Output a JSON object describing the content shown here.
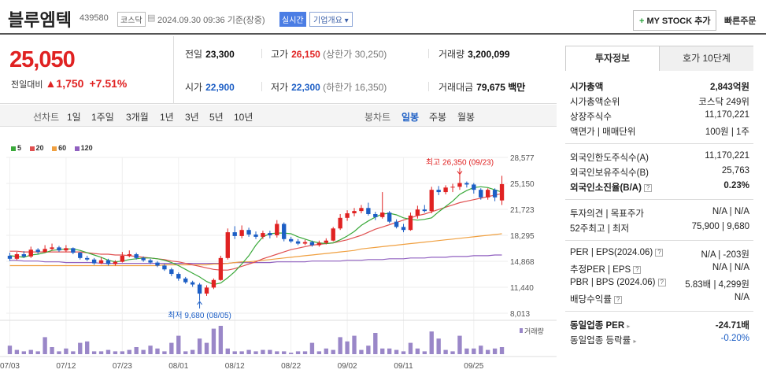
{
  "header": {
    "name": "블루엠텍",
    "code": "439580",
    "market": "코스닥",
    "datetime": "2024.09.30 09:36 기준(장중)",
    "realtime": "실시간",
    "overview": "기업개요 ▾",
    "mystock_plus": "+",
    "mystock": "MY STOCK 추가",
    "quick_order": "빠른주문"
  },
  "price": {
    "current": "25,050",
    "change_label": "전일대비",
    "change_amount": "▲1,750",
    "change_pct": "+7.51%",
    "prev_label": "전일",
    "prev": "23,300",
    "high_label": "고가",
    "high": "26,150",
    "upper_limit": "(상한가 30,250)",
    "volume_label": "거래량",
    "volume": "3,200,099",
    "open_label": "시가",
    "open": "22,900",
    "low_label": "저가",
    "low": "22,300",
    "lower_limit": "(하한가 16,350)",
    "amount_label": "거래대금",
    "amount": "79,675 백만"
  },
  "chart_controls": {
    "line_label": "선차트",
    "line_periods": [
      "1일",
      "1주일",
      "3개월",
      "1년",
      "3년",
      "5년",
      "10년"
    ],
    "candle_label": "봉차트",
    "candle_periods": [
      "일봉",
      "주봉",
      "월봉"
    ],
    "selected": "일봉"
  },
  "chart_data": {
    "type": "candlestick",
    "legend": [
      {
        "name": "5",
        "color": "#3aa93a"
      },
      {
        "name": "20",
        "color": "#e05050"
      },
      {
        "name": "60",
        "color": "#f0a040"
      },
      {
        "name": "120",
        "color": "#9060c0"
      }
    ],
    "y_ticks": [
      "28,577",
      "25,150",
      "21,723",
      "18,295",
      "14,868",
      "11,440",
      "8,013"
    ],
    "ylim": [
      8013,
      28577
    ],
    "x_ticks": [
      "07/03",
      "07/12",
      "07/23",
      "08/01",
      "08/12",
      "08/22",
      "09/02",
      "09/11",
      "09/25"
    ],
    "volume_label": "거래량",
    "high_annotation": "최고 26,350 (09/23)",
    "low_annotation": "최저 9,680 (08/05)",
    "candles": [
      [
        15600,
        15200,
        16000,
        14900
      ],
      [
        15200,
        15800,
        16100,
        15000
      ],
      [
        15800,
        15500,
        16200,
        15300
      ],
      [
        15500,
        16400,
        16800,
        15300
      ],
      [
        16400,
        16100,
        16600,
        15800
      ],
      [
        16100,
        16500,
        17000,
        16000
      ],
      [
        16500,
        16700,
        17200,
        16300
      ],
      [
        16700,
        16300,
        16900,
        16100
      ],
      [
        16300,
        16600,
        17000,
        16100
      ],
      [
        16600,
        16000,
        16700,
        15800
      ],
      [
        16000,
        15300,
        16100,
        15100
      ],
      [
        15300,
        15100,
        15600,
        14900
      ],
      [
        15100,
        14600,
        15300,
        14400
      ],
      [
        14600,
        15000,
        15400,
        14500
      ],
      [
        15000,
        14500,
        15200,
        14300
      ],
      [
        14500,
        14800,
        15000,
        14300
      ],
      [
        14800,
        15600,
        16100,
        14700
      ],
      [
        15600,
        15800,
        16300,
        15400
      ],
      [
        15800,
        15300,
        16000,
        15100
      ],
      [
        15300,
        15000,
        15500,
        14800
      ],
      [
        15000,
        14700,
        15200,
        14500
      ],
      [
        14700,
        14300,
        14900,
        14100
      ],
      [
        14300,
        13800,
        14500,
        13600
      ],
      [
        13800,
        13200,
        14000,
        12900
      ],
      [
        13200,
        12600,
        13400,
        12300
      ],
      [
        12600,
        12100,
        12800,
        11900
      ],
      [
        12100,
        11800,
        12300,
        11500
      ],
      [
        11800,
        10600,
        12000,
        9680
      ],
      [
        10600,
        11400,
        11700,
        10300
      ],
      [
        11400,
        12400,
        12600,
        11200
      ],
      [
        12400,
        15300,
        15600,
        12300
      ],
      [
        15300,
        18700,
        19200,
        15100
      ],
      [
        18700,
        18200,
        19500,
        17800
      ],
      [
        18200,
        19000,
        19600,
        17900
      ],
      [
        19000,
        18400,
        19300,
        18100
      ],
      [
        18400,
        18100,
        18800,
        17800
      ],
      [
        18100,
        18600,
        18900,
        17800
      ],
      [
        18600,
        18300,
        18900,
        17900
      ],
      [
        18300,
        19800,
        20300,
        18000
      ],
      [
        19800,
        17800,
        20000,
        17500
      ],
      [
        17800,
        17500,
        18100,
        17300
      ],
      [
        17500,
        17200,
        17800,
        17000
      ],
      [
        17200,
        17400,
        17700,
        17000
      ],
      [
        17400,
        17000,
        17600,
        16800
      ],
      [
        17000,
        17300,
        17600,
        16800
      ],
      [
        17300,
        17600,
        17900,
        17100
      ],
      [
        17600,
        19200,
        19400,
        17500
      ],
      [
        19200,
        20600,
        21100,
        19000
      ],
      [
        20600,
        21200,
        21600,
        20200
      ],
      [
        21200,
        21500,
        21900,
        20800
      ],
      [
        21500,
        21900,
        22300,
        21200
      ],
      [
        21900,
        21100,
        22600,
        20900
      ],
      [
        21100,
        20700,
        21400,
        20300
      ],
      [
        20700,
        21300,
        24000,
        20500
      ],
      [
        21300,
        20100,
        21500,
        19900
      ],
      [
        20100,
        19400,
        20400,
        19200
      ],
      [
        19400,
        19000,
        19800,
        18700
      ],
      [
        19000,
        20900,
        21300,
        18900
      ],
      [
        20900,
        21700,
        22200,
        20500
      ],
      [
        21700,
        21500,
        22300,
        21300
      ],
      [
        21500,
        24300,
        24700,
        21200
      ],
      [
        24300,
        24000,
        24800,
        23600
      ],
      [
        24000,
        24600,
        24900,
        23700
      ],
      [
        24600,
        24700,
        25100,
        24000
      ],
      [
        24700,
        25200,
        26350,
        24300
      ],
      [
        25200,
        25000,
        25400,
        24600
      ],
      [
        25000,
        24300,
        25200,
        23800
      ],
      [
        24300,
        23300,
        24500,
        23000
      ],
      [
        23300,
        24300,
        24500,
        23000
      ],
      [
        24300,
        23300,
        24500,
        22800
      ],
      [
        22900,
        25050,
        26150,
        22300
      ]
    ],
    "volumes": [
      6,
      3,
      2,
      3,
      2,
      12,
      5,
      2,
      4,
      2,
      8,
      9,
      2,
      2,
      3,
      2,
      2,
      3,
      5,
      3,
      6,
      4,
      2,
      8,
      13,
      2,
      3,
      11,
      8,
      18,
      20,
      4,
      2,
      2,
      3,
      2,
      3,
      3,
      2,
      2,
      1,
      2,
      2,
      8,
      2,
      4,
      3,
      12,
      9,
      13,
      3,
      6,
      15,
      4,
      4,
      3,
      2,
      8,
      4,
      2,
      16,
      11,
      3,
      2,
      13,
      4,
      4,
      6,
      3,
      4,
      5
    ],
    "ma5": [
      15600,
      15500,
      15400,
      15700,
      15800,
      16000,
      16300,
      16400,
      16500,
      16500,
      16300,
      16000,
      15700,
      15400,
      15000,
      14800,
      14900,
      15100,
      15200,
      15300,
      15300,
      15200,
      15000,
      14700,
      14300,
      13800,
      13300,
      12800,
      12200,
      11800,
      12000,
      12700,
      13500,
      14500,
      15600,
      17000,
      18100,
      18500,
      18600,
      18600,
      18500,
      18100,
      17800,
      17500,
      17300,
      17200,
      17300,
      17700,
      18200,
      18800,
      19600,
      20200,
      20700,
      21100,
      21200,
      21000,
      20600,
      20400,
      20300,
      20400,
      20600,
      21400,
      22100,
      22800,
      23700,
      24200,
      24600,
      24700,
      24600,
      24300,
      24000
    ],
    "ma20": [
      16200,
      16200,
      16100,
      16100,
      16100,
      16100,
      16100,
      16100,
      16100,
      16100,
      16100,
      16000,
      15900,
      15800,
      15800,
      15700,
      15700,
      15600,
      15500,
      15400,
      15300,
      15200,
      15100,
      14900,
      14800,
      14600,
      14400,
      14200,
      14000,
      13800,
      13700,
      13700,
      13900,
      14200,
      14500,
      14800,
      15200,
      15500,
      15800,
      16100,
      16400,
      16600,
      16800,
      17000,
      17100,
      17200,
      17300,
      17500,
      17700,
      18000,
      18300,
      18700,
      19100,
      19400,
      19700,
      20000,
      20300,
      20600,
      20900,
      21100,
      21400,
      21700,
      22000,
      22300,
      22600,
      22800,
      23000,
      23200,
      23400,
      23600,
      23800
    ],
    "ma60": [
      14300,
      14300,
      14300,
      14300,
      14300,
      14300,
      14300,
      14300,
      14300,
      14300,
      14300,
      14300,
      14300,
      14300,
      14300,
      14300,
      14300,
      14300,
      14300,
      14300,
      14300,
      14300,
      14400,
      14400,
      14400,
      14400,
      14400,
      14400,
      14400,
      14500,
      14500,
      14600,
      14700,
      14800,
      14800,
      14900,
      15000,
      15100,
      15200,
      15300,
      15400,
      15500,
      15600,
      15700,
      15800,
      15900,
      16000,
      16100,
      16200,
      16300,
      16500,
      16600,
      16700,
      16800,
      16900,
      17000,
      17100,
      17200,
      17300,
      17400,
      17500,
      17600,
      17700,
      17800,
      17900,
      18000,
      18100,
      18200,
      18300,
      18400,
      18500
    ],
    "ma120": [
      15000,
      15000,
      14900,
      14900,
      14900,
      14800,
      14800,
      14800,
      14700,
      14700,
      14700,
      14700,
      14700,
      14600,
      14600,
      14600,
      14600,
      14600,
      14600,
      14600,
      14600,
      14600,
      14600,
      14600,
      14600,
      14600,
      14600,
      14600,
      14600,
      14600,
      14600,
      14600,
      14700,
      14700,
      14700,
      14700,
      14700,
      14700,
      14800,
      14800,
      14800,
      14800,
      14800,
      14900,
      14900,
      14900,
      14900,
      14900,
      15000,
      15000,
      15000,
      15100,
      15100,
      15100,
      15200,
      15200,
      15200,
      15300,
      15300,
      15300,
      15400,
      15400,
      15400,
      15500,
      15500,
      15500,
      15600,
      15600,
      15600,
      15700,
      15700
    ],
    "colors": {
      "up": "#e02222",
      "down": "#1c5ec5"
    }
  },
  "right_panel": {
    "tab_invest": "투자정보",
    "tab_quote": "호가 10단계",
    "rows": [
      {
        "label": "시가총액",
        "value": "2,843억원"
      },
      {
        "label": "시가총액순위",
        "value": "코스닥 249위"
      },
      {
        "label": "상장주식수",
        "value": "11,170,221"
      },
      {
        "label": "액면가 | 매매단위",
        "value": "100원 | 1주"
      },
      {
        "label": "외국인한도주식수(A)",
        "value": "11,170,221"
      },
      {
        "label": "외국인보유주식수(B)",
        "value": "25,763"
      },
      {
        "label": "외국인소진율(B/A)",
        "value": "0.23%"
      },
      {
        "label": "투자의견 | 목표주가",
        "value": "N/A | N/A"
      },
      {
        "label": "52주최고 | 최저",
        "value": "75,900 | 9,680"
      },
      {
        "label": "PER | EPS(2024.06)",
        "value": "N/A | -203원"
      },
      {
        "label": "추정PER | EPS",
        "value": "N/A | N/A"
      },
      {
        "label": "PBR | BPS (2024.06)",
        "value": "5.83배 | 4,299원"
      },
      {
        "label": "배당수익률",
        "value": "N/A"
      },
      {
        "label": "동일업종 PER",
        "value": "-24.71배"
      },
      {
        "label": "동일업종 등락률",
        "value": "-0.20%"
      }
    ]
  }
}
